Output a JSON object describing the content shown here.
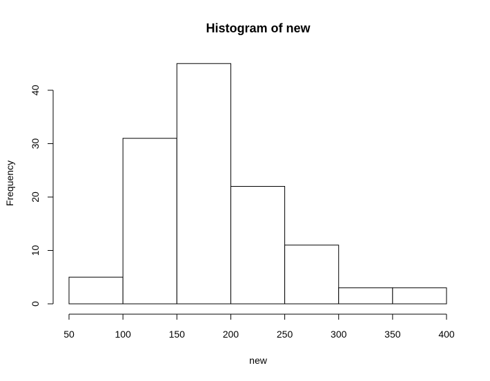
{
  "chart_data": {
    "type": "bar",
    "title": "Histogram of new",
    "xlabel": "new",
    "ylabel": "Frequency",
    "bins": [
      {
        "from": 50,
        "to": 100,
        "count": 5
      },
      {
        "from": 100,
        "to": 150,
        "count": 31
      },
      {
        "from": 150,
        "to": 200,
        "count": 45
      },
      {
        "from": 200,
        "to": 250,
        "count": 22
      },
      {
        "from": 250,
        "to": 300,
        "count": 11
      },
      {
        "from": 300,
        "to": 350,
        "count": 3
      },
      {
        "from": 350,
        "to": 400,
        "count": 3
      }
    ],
    "xlim": [
      50,
      400
    ],
    "ylim": [
      0,
      45
    ],
    "x_ticks": [
      50,
      100,
      150,
      200,
      250,
      300,
      350,
      400
    ],
    "y_ticks": [
      0,
      10,
      20,
      30,
      40
    ],
    "grid": false,
    "colors": {
      "bar_fill": "#ffffff",
      "bar_stroke": "#000000"
    }
  }
}
